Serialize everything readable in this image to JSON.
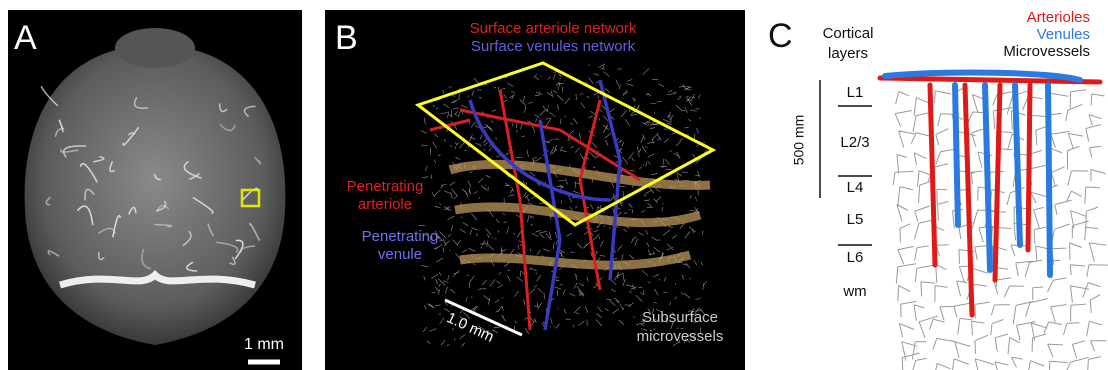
{
  "panel_a": {
    "letter": "A",
    "scale_bar": "1 mm"
  },
  "panel_b": {
    "letter": "B",
    "surface_arteriole": "Surface arteriole network",
    "surface_venules": "Surface venules network",
    "penetrating_arteriole": [
      "Penetrating",
      "arteriole"
    ],
    "penetrating_venule": [
      "Penetrating",
      "venule"
    ],
    "scale_bar": "1.0 mm",
    "subsurface": [
      "Subsurface",
      "microvessels"
    ]
  },
  "panel_c": {
    "letter": "C",
    "cortical_layers": [
      "Cortical",
      "layers"
    ],
    "legend": {
      "arterioles": "Arterioles",
      "venules": "Venules",
      "microvessels": "Microvessels"
    },
    "depth_scale": "500 mm",
    "layers": [
      "L1",
      "L2/3",
      "L4",
      "L5",
      "L6",
      "wm"
    ]
  }
}
